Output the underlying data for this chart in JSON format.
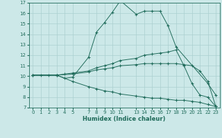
{
  "bg_color": "#cce8e8",
  "grid_color": "#aacfcf",
  "line_color": "#1f6b5a",
  "marker_color": "#1f6b5a",
  "xlabel": "Humidex (Indice chaleur)",
  "xlim": [
    -0.5,
    23.5
  ],
  "ylim": [
    7,
    17
  ],
  "xticks": [
    0,
    1,
    2,
    3,
    4,
    5,
    7,
    8,
    9,
    10,
    11,
    13,
    14,
    15,
    16,
    17,
    18,
    19,
    20,
    21,
    22,
    23
  ],
  "yticks": [
    7,
    8,
    9,
    10,
    11,
    12,
    13,
    14,
    15,
    16,
    17
  ],
  "series": [
    [
      0,
      10.1,
      1,
      10.1,
      2,
      10.1,
      3,
      10.1,
      4,
      9.8,
      5,
      9.9,
      7,
      11.8,
      8,
      14.2,
      9,
      15.1,
      10,
      16.1,
      11,
      17.2,
      13,
      15.9,
      14,
      16.2,
      15,
      16.2,
      16,
      16.2,
      17,
      14.8,
      18,
      12.8,
      22,
      9.3,
      23,
      8.2
    ],
    [
      0,
      10.1,
      3,
      10.1,
      4,
      10.2,
      5,
      10.3,
      7,
      10.5,
      8,
      10.8,
      9,
      11.0,
      10,
      11.2,
      11,
      11.5,
      13,
      11.7,
      14,
      12.0,
      15,
      12.1,
      16,
      12.2,
      17,
      12.3,
      18,
      12.5,
      19,
      11.0,
      20,
      9.3,
      21,
      8.2,
      22,
      8.0,
      23,
      7.1
    ],
    [
      0,
      10.1,
      3,
      10.1,
      5,
      10.2,
      7,
      10.4,
      8,
      10.6,
      9,
      10.7,
      10,
      10.8,
      11,
      11.0,
      13,
      11.1,
      14,
      11.2,
      15,
      11.2,
      16,
      11.2,
      17,
      11.2,
      18,
      11.2,
      19,
      11.1,
      20,
      11.0,
      21,
      10.5,
      22,
      9.5,
      23,
      7.1
    ],
    [
      0,
      10.1,
      3,
      10.1,
      5,
      9.5,
      7,
      9.0,
      8,
      8.8,
      9,
      8.6,
      10,
      8.5,
      11,
      8.3,
      13,
      8.1,
      14,
      8.0,
      15,
      7.9,
      16,
      7.9,
      17,
      7.8,
      18,
      7.7,
      19,
      7.7,
      20,
      7.6,
      21,
      7.5,
      22,
      7.3,
      23,
      7.1
    ]
  ]
}
